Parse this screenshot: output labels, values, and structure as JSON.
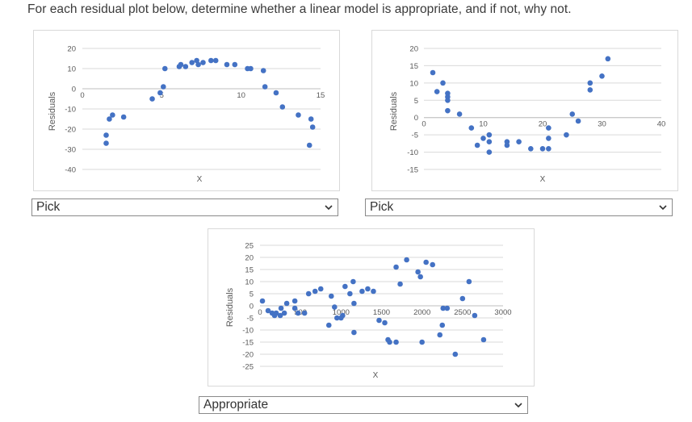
{
  "question": "For each residual plot below, determine whether a linear model is appropriate, and if not, why not.",
  "plots": [
    {
      "id": "plot1",
      "ylabel": "Residuals",
      "xlabel": "X",
      "yticks": [
        "20",
        "10",
        "0",
        "-10",
        "-20",
        "-30",
        "-40"
      ],
      "xticks": [
        "0",
        "5",
        "10",
        "15"
      ],
      "select_value": "Pick"
    },
    {
      "id": "plot2",
      "ylabel": "Residuals",
      "xlabel": "X",
      "yticks": [
        "20",
        "15",
        "10",
        "5",
        "0",
        "-5",
        "-10",
        "-15"
      ],
      "xticks": [
        "0",
        "10",
        "20",
        "30",
        "40"
      ],
      "select_value": "Pick"
    },
    {
      "id": "plot3",
      "ylabel": "Residuals",
      "xlabel": "X",
      "yticks": [
        "25",
        "20",
        "15",
        "10",
        "5",
        "0",
        "-5",
        "-10",
        "-15",
        "-20",
        "-25"
      ],
      "xticks": [
        "0",
        "500",
        "1000",
        "1500",
        "2000",
        "2500",
        "3000"
      ],
      "select_value": "Appropriate"
    }
  ],
  "chart_data": [
    {
      "type": "scatter",
      "title": "",
      "xlabel": "X",
      "ylabel": "Residuals",
      "xlim": [
        0,
        15
      ],
      "ylim": [
        -40,
        20
      ],
      "color": "#4472c4",
      "points": [
        [
          1.5,
          -23
        ],
        [
          1.5,
          -27
        ],
        [
          1.7,
          -15
        ],
        [
          1.9,
          -13
        ],
        [
          2.6,
          -14
        ],
        [
          4.4,
          -5
        ],
        [
          4.9,
          -2
        ],
        [
          5.1,
          1
        ],
        [
          5.2,
          10
        ],
        [
          6.1,
          11
        ],
        [
          6.2,
          12
        ],
        [
          6.5,
          11
        ],
        [
          6.9,
          13
        ],
        [
          7.2,
          14
        ],
        [
          7.3,
          12
        ],
        [
          7.6,
          13
        ],
        [
          8.1,
          14
        ],
        [
          8.4,
          14
        ],
        [
          9.1,
          12
        ],
        [
          9.6,
          12
        ],
        [
          10.4,
          10
        ],
        [
          10.6,
          10
        ],
        [
          11.4,
          9
        ],
        [
          11.5,
          1
        ],
        [
          12.2,
          -2
        ],
        [
          12.6,
          -9
        ],
        [
          13.6,
          -13
        ],
        [
          14.4,
          -15
        ],
        [
          14.5,
          -19
        ],
        [
          14.3,
          -28
        ]
      ]
    },
    {
      "type": "scatter",
      "title": "",
      "xlabel": "X",
      "ylabel": "Residuals",
      "xlim": [
        0,
        40
      ],
      "ylim": [
        -15,
        20
      ],
      "color": "#4472c4",
      "points": [
        [
          1.5,
          13
        ],
        [
          2.2,
          7.5
        ],
        [
          3.2,
          10
        ],
        [
          4,
          7
        ],
        [
          4,
          5
        ],
        [
          4,
          6
        ],
        [
          4,
          2
        ],
        [
          6,
          1
        ],
        [
          8,
          -3
        ],
        [
          9,
          -8
        ],
        [
          10,
          -6
        ],
        [
          11,
          -5
        ],
        [
          11,
          -7
        ],
        [
          11,
          -10
        ],
        [
          14,
          -7
        ],
        [
          14,
          -8
        ],
        [
          16,
          -7
        ],
        [
          18,
          -9
        ],
        [
          20,
          -9
        ],
        [
          21,
          -3
        ],
        [
          21,
          -6
        ],
        [
          21,
          -9
        ],
        [
          24,
          -5
        ],
        [
          25,
          1
        ],
        [
          26,
          -1
        ],
        [
          28,
          10
        ],
        [
          28,
          8
        ],
        [
          30,
          12
        ],
        [
          31,
          17
        ]
      ]
    },
    {
      "type": "scatter",
      "title": "",
      "xlabel": "X",
      "ylabel": "Residuals",
      "xlim": [
        0,
        3000
      ],
      "ylim": [
        -25,
        25
      ],
      "color": "#4472c4",
      "points": [
        [
          30,
          2
        ],
        [
          100,
          -2
        ],
        [
          150,
          -3
        ],
        [
          180,
          -4
        ],
        [
          200,
          -3
        ],
        [
          250,
          -4
        ],
        [
          260,
          -1
        ],
        [
          300,
          -3
        ],
        [
          330,
          1
        ],
        [
          430,
          2
        ],
        [
          430,
          -1
        ],
        [
          470,
          -3
        ],
        [
          550,
          -3
        ],
        [
          600,
          5
        ],
        [
          680,
          6
        ],
        [
          750,
          7
        ],
        [
          850,
          -8
        ],
        [
          880,
          4
        ],
        [
          920,
          -0.5
        ],
        [
          950,
          -5
        ],
        [
          1000,
          -5
        ],
        [
          1020,
          -4
        ],
        [
          1050,
          8
        ],
        [
          1110,
          5
        ],
        [
          1160,
          1
        ],
        [
          1150,
          10
        ],
        [
          1160,
          -11
        ],
        [
          1260,
          6
        ],
        [
          1330,
          7
        ],
        [
          1400,
          6
        ],
        [
          1470,
          -6
        ],
        [
          1540,
          -7
        ],
        [
          1580,
          -14
        ],
        [
          1600,
          -15
        ],
        [
          1680,
          -15
        ],
        [
          1680,
          16
        ],
        [
          1730,
          9
        ],
        [
          1810,
          19
        ],
        [
          1950,
          14
        ],
        [
          1980,
          12
        ],
        [
          2000,
          -15
        ],
        [
          2050,
          18
        ],
        [
          2130,
          17
        ],
        [
          2220,
          -12
        ],
        [
          2250,
          -8
        ],
        [
          2260,
          -1
        ],
        [
          2310,
          -1
        ],
        [
          2410,
          -20
        ],
        [
          2500,
          3
        ],
        [
          2580,
          10
        ],
        [
          2650,
          -4
        ],
        [
          2760,
          -14
        ]
      ]
    }
  ]
}
